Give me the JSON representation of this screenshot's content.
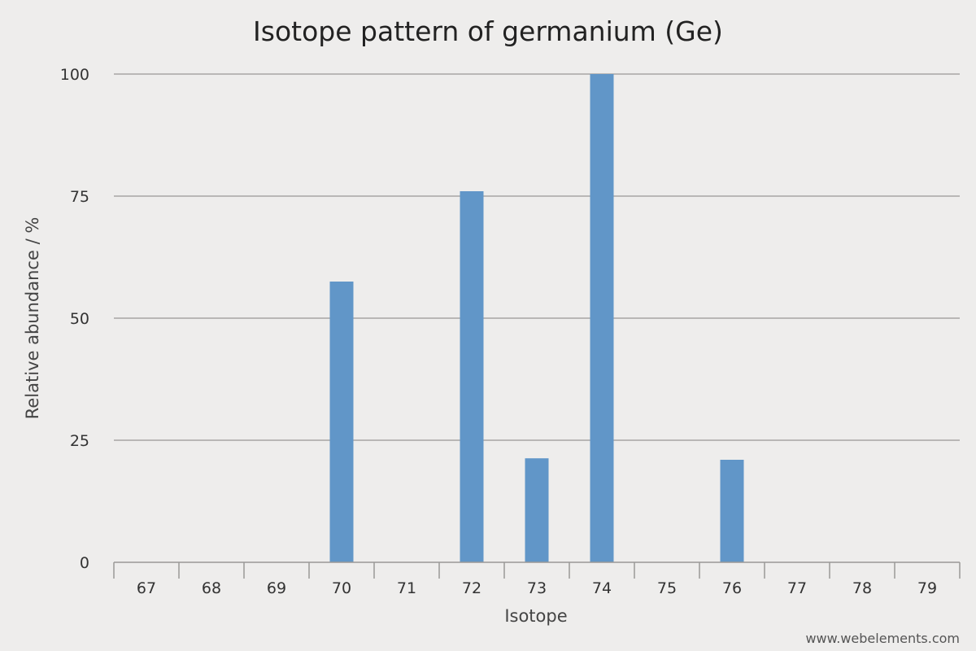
{
  "chart_data": {
    "type": "bar",
    "title": "Isotope pattern of germanium (Ge)",
    "xlabel": "Isotope",
    "ylabel": "Relative abundance / %",
    "categories": [
      "67",
      "68",
      "69",
      "70",
      "71",
      "72",
      "73",
      "74",
      "75",
      "76",
      "77",
      "78",
      "79"
    ],
    "values": [
      0,
      0,
      0,
      57.5,
      0,
      76,
      21.3,
      100,
      0,
      21,
      0,
      0,
      0
    ],
    "yticks": [
      "0",
      "25",
      "50",
      "75",
      "100"
    ],
    "ylim": [
      0,
      100
    ],
    "grid": true,
    "legend": "none",
    "bar_color": "#6196c8"
  },
  "credit": "www.webelements.com"
}
